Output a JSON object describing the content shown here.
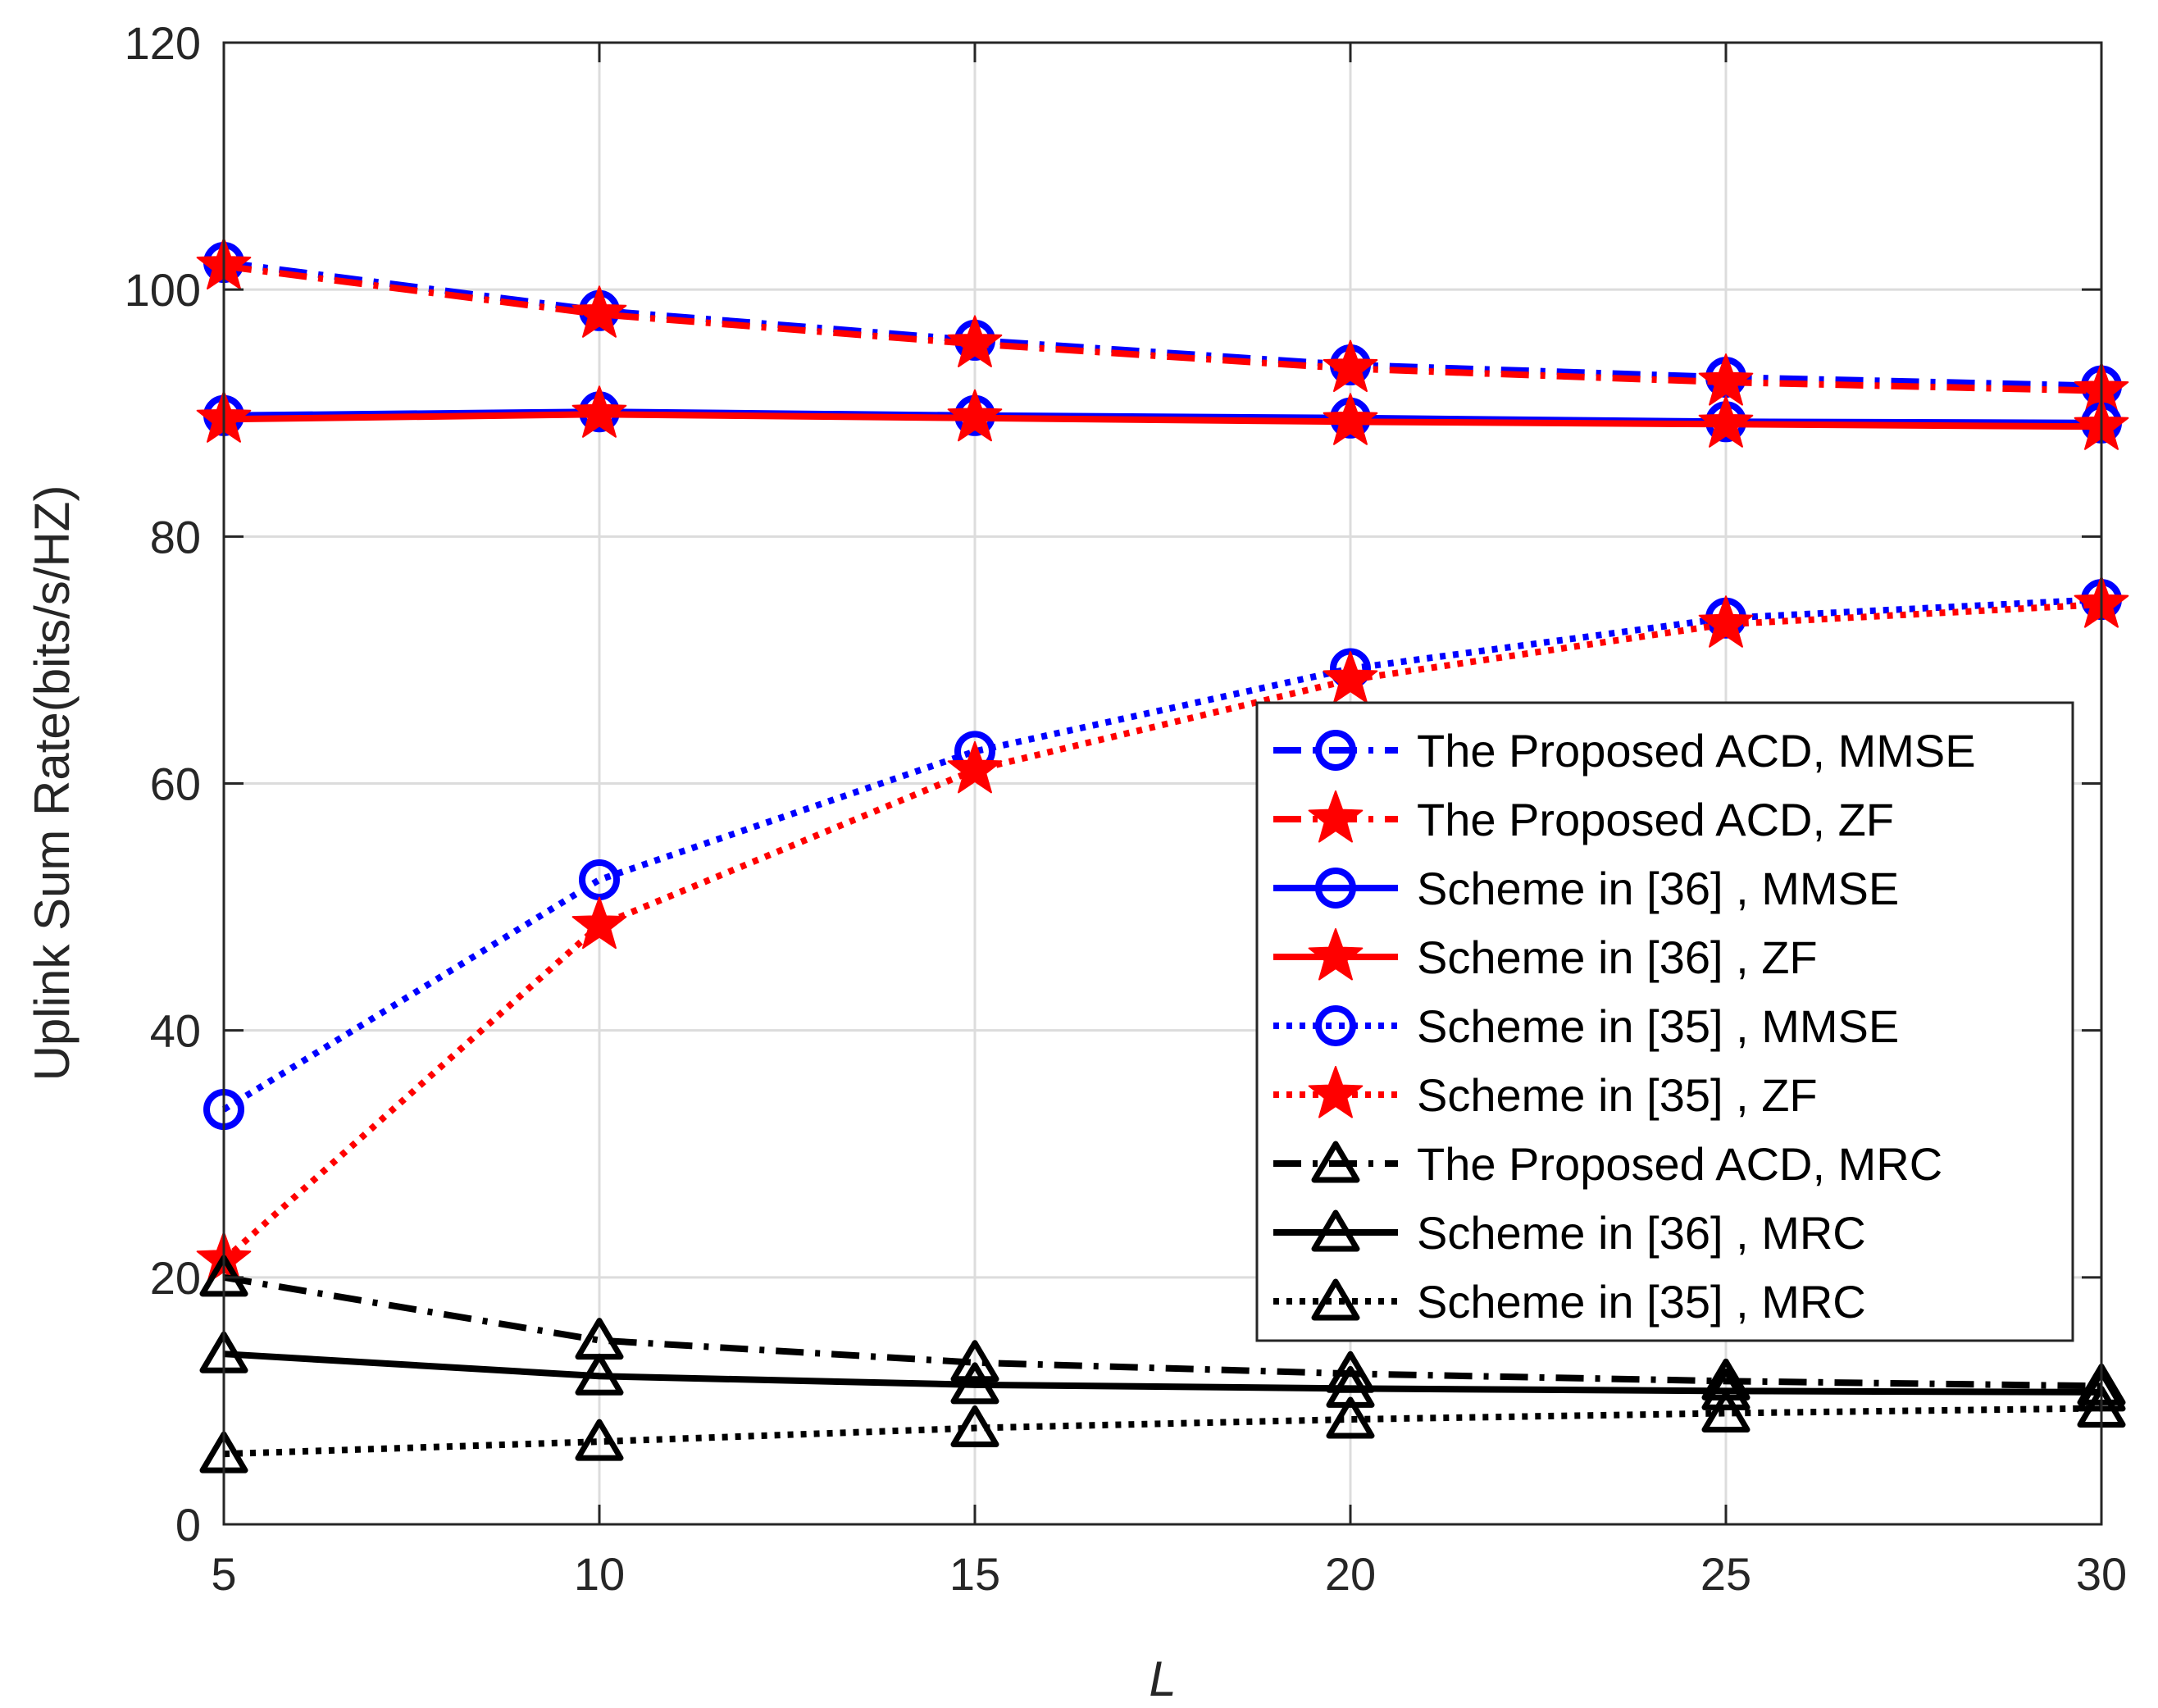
{
  "chart_data": {
    "type": "line",
    "xlabel": "L",
    "ylabel": "Uplink Sum Rate(bits/s/HZ)",
    "x": [
      5,
      10,
      15,
      20,
      25,
      30
    ],
    "xlim": [
      5,
      30
    ],
    "ylim": [
      0,
      120
    ],
    "xticks": [
      5,
      10,
      15,
      20,
      25,
      30
    ],
    "yticks": [
      0,
      20,
      40,
      60,
      80,
      100,
      120
    ],
    "grid": true,
    "legend_position": "right",
    "series": [
      {
        "name": "The Proposed ACD, MMSE",
        "values": [
          102.2,
          98.3,
          95.9,
          93.9,
          92.9,
          92.2
        ],
        "color": "#0000ff",
        "style": "dashdot",
        "marker": "circle"
      },
      {
        "name": "The Proposed ACD, ZF",
        "values": [
          101.9,
          98.0,
          95.6,
          93.6,
          92.5,
          91.8
        ],
        "color": "#ff0000",
        "style": "dashdot",
        "marker": "star"
      },
      {
        "name": "Scheme in [36] , MMSE",
        "values": [
          89.8,
          90.1,
          89.8,
          89.6,
          89.3,
          89.2
        ],
        "color": "#0000ff",
        "style": "solid",
        "marker": "circle"
      },
      {
        "name": "Scheme in [36] , ZF",
        "values": [
          89.5,
          89.9,
          89.6,
          89.3,
          89.1,
          88.9
        ],
        "color": "#ff0000",
        "style": "solid",
        "marker": "star"
      },
      {
        "name": "Scheme in [35] , MMSE",
        "values": [
          33.6,
          52.2,
          62.6,
          69.3,
          73.4,
          74.9
        ],
        "color": "#0000ff",
        "style": "dotted",
        "marker": "circle"
      },
      {
        "name": "Scheme in [35] , ZF",
        "values": [
          21.4,
          48.5,
          61.1,
          68.4,
          72.9,
          74.5
        ],
        "color": "#ff0000",
        "style": "dotted",
        "marker": "star"
      },
      {
        "name": "The Proposed ACD, MRC",
        "values": [
          20.0,
          14.9,
          13.1,
          12.2,
          11.6,
          11.2
        ],
        "color": "#000000",
        "style": "dashdot",
        "marker": "triangle"
      },
      {
        "name": "Scheme in [36] , MRC",
        "values": [
          13.8,
          12.0,
          11.3,
          11.0,
          10.8,
          10.7
        ],
        "color": "#000000",
        "style": "solid",
        "marker": "triangle"
      },
      {
        "name": "Scheme in [35] , MRC",
        "values": [
          5.7,
          6.7,
          7.8,
          8.5,
          9.0,
          9.4
        ],
        "color": "#000000",
        "style": "dotted",
        "marker": "triangle"
      }
    ]
  }
}
